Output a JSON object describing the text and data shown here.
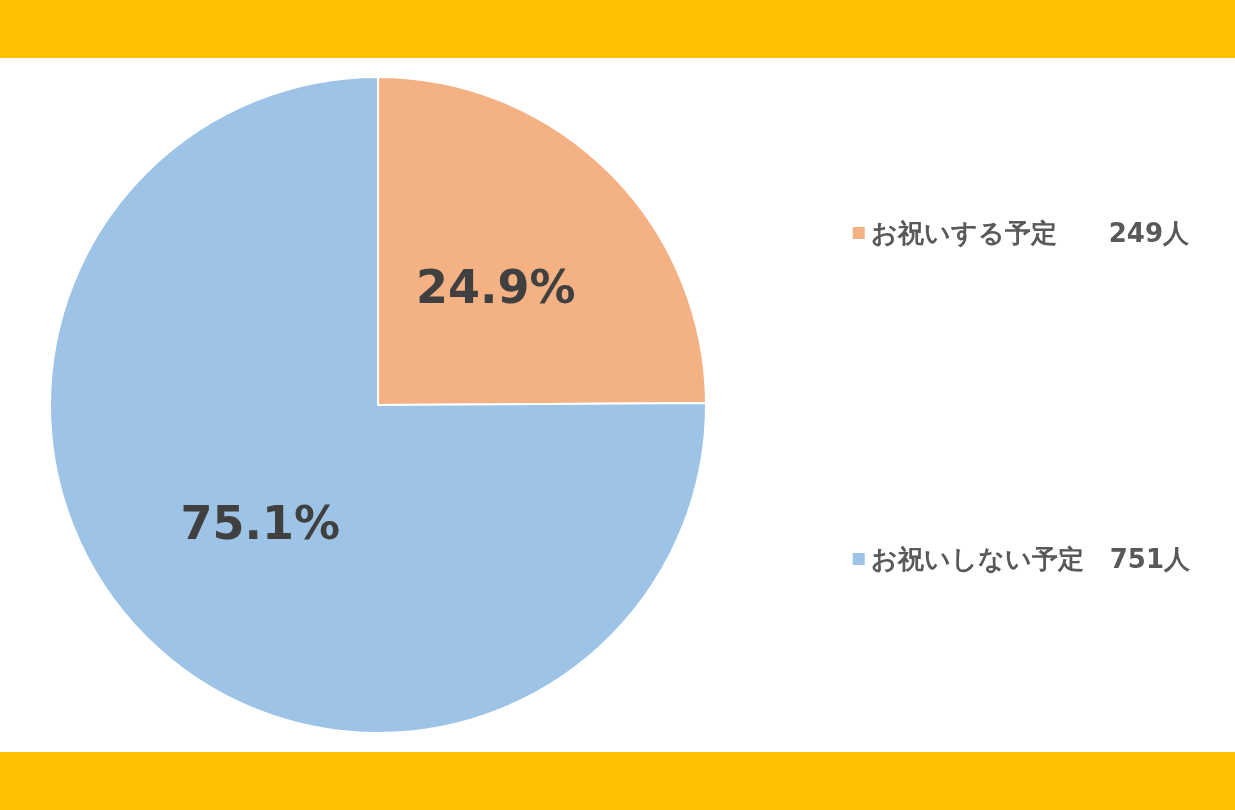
{
  "chart_data": {
    "type": "pie",
    "categories": [
      "お祝いする予定　　249人",
      "お祝いしない予定　751人"
    ],
    "values": [
      24.9,
      75.1
    ],
    "value_labels": [
      "24.9%",
      "75.1%"
    ],
    "colors": [
      "#f4b183",
      "#9dc3e6"
    ],
    "legend": "right"
  }
}
